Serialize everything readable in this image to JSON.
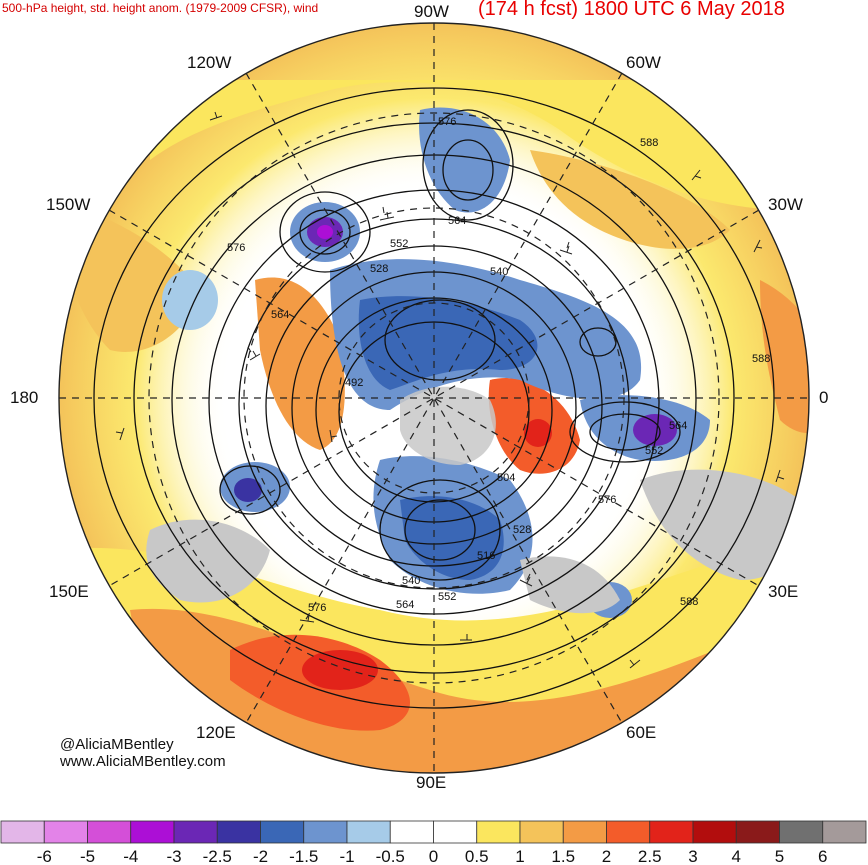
{
  "header": {
    "left_title": "500-hPa height, std. height anom. (1979-2009 CFSR), wind",
    "right_title": "(174 h fcst) 1800 UTC 6 May 2018"
  },
  "credits": {
    "handle": "@AliciaMBentley",
    "website": "www.AliciaMBentley.com"
  },
  "longitude_labels": {
    "lon_90w": "90W",
    "lon_60w": "60W",
    "lon_120w": "120W",
    "lon_30w": "30W",
    "lon_150w": "150W",
    "lon_0": "0",
    "lon_180": "180",
    "lon_150e": "150E",
    "lon_30e": "30E",
    "lon_120e": "120E",
    "lon_60e": "60E",
    "lon_90e": "90E"
  },
  "contour_labels": [
    "576",
    "588",
    "564",
    "552",
    "528",
    "540",
    "576",
    "564",
    "492",
    "588",
    "564",
    "552",
    "504",
    "576",
    "528",
    "516",
    "540",
    "552",
    "564",
    "576",
    "588"
  ],
  "colors": {
    "neg6": "#e3b6e8",
    "neg5": "#e383e8",
    "neg4": "#d44fd8",
    "neg3": "#ac0fd6",
    "neg25": "#6b27b5",
    "neg2": "#3a33a2",
    "neg15": "#3a67b6",
    "neg1": "#6d94cf",
    "neg05": "#a6cbe8",
    "neutral": "#ffffff",
    "pos05": "#fbe65e",
    "pos1": "#f4c35a",
    "pos15": "#f39b45",
    "pos2": "#f35c2a",
    "pos25": "#e2231a",
    "pos3": "#b20d0d",
    "pos4": "#8a1a1a",
    "pos5": "#707070",
    "pos6": "#a49a9a",
    "land_gray": "#c8c8c8"
  },
  "colorbar": {
    "ticks": [
      "-6",
      "-5",
      "-4",
      "-3",
      "-2.5",
      "-2",
      "-1.5",
      "-1",
      "-0.5",
      "0",
      "0.5",
      "1",
      "1.5",
      "2",
      "2.5",
      "3",
      "4",
      "5",
      "6"
    ],
    "colors": [
      "#e3b6e8",
      "#e383e8",
      "#d44fd8",
      "#ac0fd6",
      "#6b27b5",
      "#3a33a2",
      "#3a67b6",
      "#6d94cf",
      "#a6cbe8",
      "#ffffff",
      "#ffffff",
      "#fbe65e",
      "#f4c35a",
      "#f39b45",
      "#f35c2a",
      "#e2231a",
      "#b20d0d",
      "#8a1a1a",
      "#707070",
      "#a49a9a"
    ]
  }
}
